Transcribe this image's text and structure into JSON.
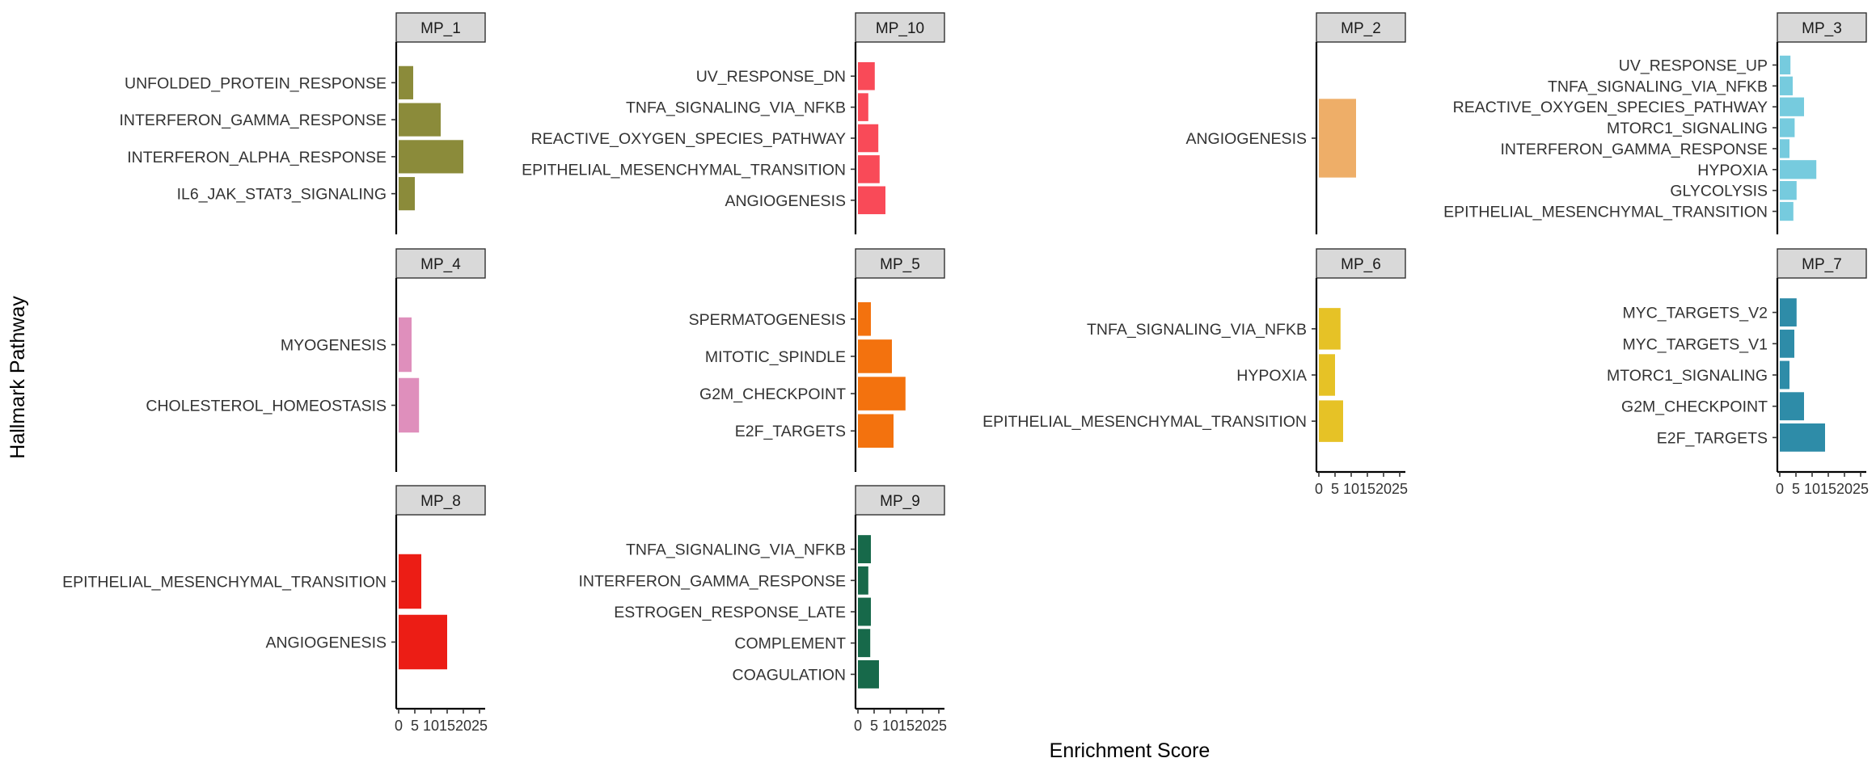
{
  "chart_data": {
    "type": "bar",
    "orientation": "horizontal",
    "facet_wrap": true,
    "xlabel": "Enrichment Score",
    "ylabel": "Hallmark Pathway",
    "xlim": [
      0,
      25
    ],
    "xticks": [
      "0",
      "5",
      "10",
      "15",
      "20",
      "25"
    ],
    "grid": false,
    "legend": "none",
    "facets": [
      {
        "name": "MP_1",
        "color": "#8B8B3A",
        "categories": [
          "UNFOLDED_PROTEIN_RESPONSE",
          "INTERFERON_GAMMA_RESPONSE",
          "INTERFERON_ALPHA_RESPONSE",
          "IL6_JAK_STAT3_SIGNALING"
        ],
        "values": [
          4.5,
          13,
          20,
          5
        ]
      },
      {
        "name": "MP_10",
        "color": "#F94A58",
        "categories": [
          "UV_RESPONSE_DN",
          "TNFA_SIGNALING_VIA_NFKB",
          "REACTIVE_OXYGEN_SPECIES_PATHWAY",
          "EPITHELIAL_MESENCHYMAL_TRANSITION",
          "ANGIOGENESIS"
        ],
        "values": [
          5.2,
          3.2,
          6.3,
          6.7,
          8.5
        ]
      },
      {
        "name": "MP_2",
        "color": "#EEAE68",
        "categories": [
          "ANGIOGENESIS"
        ],
        "values": [
          11.5
        ]
      },
      {
        "name": "MP_3",
        "color": "#76CBDE",
        "categories": [
          "UV_RESPONSE_UP",
          "TNFA_SIGNALING_VIA_NFKB",
          "REACTIVE_OXYGEN_SPECIES_PATHWAY",
          "MTORC1_SIGNALING",
          "INTERFERON_GAMMA_RESPONSE",
          "HYPOXIA",
          "GLYCOLYSIS",
          "EPITHELIAL_MESENCHYMAL_TRANSITION"
        ],
        "values": [
          3.3,
          4,
          7.5,
          4.6,
          3,
          11.3,
          5.2,
          4.2
        ]
      },
      {
        "name": "MP_4",
        "color": "#DF8FBC",
        "categories": [
          "MYOGENESIS",
          "CHOLESTEROL_HOMEOSTASIS"
        ],
        "values": [
          4,
          6.3
        ]
      },
      {
        "name": "MP_5",
        "color": "#F3720E",
        "categories": [
          "SPERMATOGENESIS",
          "MITOTIC_SPINDLE",
          "G2M_CHECKPOINT",
          "E2F_TARGETS"
        ],
        "values": [
          4,
          10.5,
          14.7,
          11
        ]
      },
      {
        "name": "MP_6",
        "color": "#E6C226",
        "categories": [
          "TNFA_SIGNALING_VIA_NFKB",
          "HYPOXIA",
          "EPITHELIAL_MESENCHYMAL_TRANSITION"
        ],
        "values": [
          6.7,
          5,
          7.5
        ]
      },
      {
        "name": "MP_7",
        "color": "#2E8CA8",
        "categories": [
          "MYC_TARGETS_V2",
          "MYC_TARGETS_V1",
          "MTORC1_SIGNALING",
          "G2M_CHECKPOINT",
          "E2F_TARGETS"
        ],
        "values": [
          5.2,
          4.5,
          3,
          7.5,
          14
        ]
      },
      {
        "name": "MP_8",
        "color": "#EC1D15",
        "categories": [
          "EPITHELIAL_MESENCHYMAL_TRANSITION",
          "ANGIOGENESIS"
        ],
        "values": [
          7,
          15
        ]
      },
      {
        "name": "MP_9",
        "color": "#17694A",
        "categories": [
          "TNFA_SIGNALING_VIA_NFKB",
          "INTERFERON_GAMMA_RESPONSE",
          "ESTROGEN_RESPONSE_LATE",
          "COMPLEMENT",
          "COAGULATION"
        ],
        "values": [
          4,
          3.2,
          4,
          3.8,
          6.5
        ]
      }
    ]
  }
}
